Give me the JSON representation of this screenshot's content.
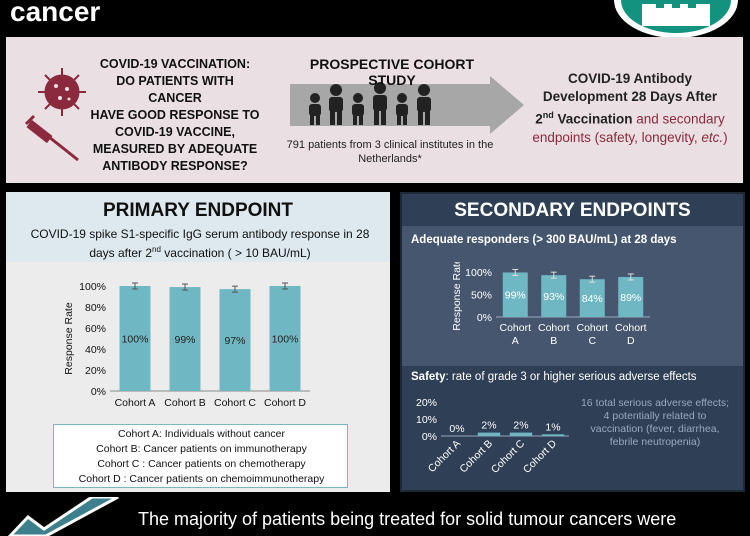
{
  "header": {
    "title": "cancer"
  },
  "intro": {
    "question_lines": [
      "COVID-19 VACCINATION:",
      "DO PATIENTS WITH CANCER",
      "HAVE GOOD RESPONSE TO",
      "COVID-19 VACCINE,",
      "MEASURED BY ADEQUATE",
      "ANTIBODY RESPONSE?"
    ],
    "study_title": "PROSPECTIVE COHORT STUDY",
    "study_sub": "791 patients from 3 clinical institutes in the Netherlands*",
    "outcome_main_1": "COVID-19 Antibody",
    "outcome_main_2": "Development 28 Days After",
    "outcome_ordinal": "2",
    "outcome_sup": "nd",
    "outcome_vacc": " Vaccination",
    "outcome_rest": " and secondary endpoints (safety, longevity, ",
    "outcome_etc": "etc.",
    "outcome_close": ")"
  },
  "primary": {
    "title": "PRIMARY ENDPOINT",
    "desc_1": "COVID-19 spike S1-specific IgG serum antibody response in 28",
    "desc_2a": "days after 2",
    "desc_2sup": "nd",
    "desc_2b": " vaccination ( > 10 BAU/mL)",
    "legend": [
      "Cohort A: Individuals without cancer",
      "Cohort B: Cancer patients on immunotherapy",
      "Cohort C : Cancer patients on chemotherapy",
      "Cohort D : Cancer patients on chemoimmunotherapy"
    ]
  },
  "secondary": {
    "title": "SECONDARY ENDPOINTS",
    "adequate_label": "Adequate responders (> 300 BAU/mL) at 28 days",
    "safety_bold": "Safety",
    "safety_rest": ": rate of grade 3 or higher serious adverse effects",
    "safety_note": "16 total serious adverse effects; 4 potentially related to vaccination (fever, diarrhea, febrile neutropenia)"
  },
  "footer": {
    "text": "The majority of patients being treated for solid tumour cancers were"
  },
  "colors": {
    "bar": "#6fb7c2",
    "accent_red": "#8b2a3e",
    "dark_panel": "#2f3f55"
  },
  "chart_data": [
    {
      "type": "bar",
      "title": "",
      "ylabel": "Response Rate",
      "categories": [
        "Cohort A",
        "Cohort B",
        "Cohort C",
        "Cohort D"
      ],
      "values": [
        100,
        99,
        97,
        100
      ],
      "data_labels": [
        "100%",
        "99%",
        "97%",
        "100%"
      ],
      "yticks": [
        "0%",
        "20%",
        "40%",
        "60%",
        "80%",
        "100%"
      ],
      "ylim": [
        0,
        100
      ],
      "error_bars": true
    },
    {
      "type": "bar",
      "title": "Adequate responders (> 300 BAU/mL) at 28 days",
      "ylabel": "Response Rate",
      "categories": [
        "Cohort A",
        "Cohort B",
        "Cohort C",
        "Cohort D"
      ],
      "values": [
        99,
        93,
        84,
        89
      ],
      "data_labels": [
        "99%",
        "93%",
        "84%",
        "89%"
      ],
      "yticks": [
        "0%",
        "50%",
        "100%"
      ],
      "ylim": [
        0,
        100
      ],
      "error_bars": true
    },
    {
      "type": "bar",
      "title": "Safety: rate of grade 3 or higher serious adverse effects",
      "categories": [
        "Cohort A",
        "Cohort B",
        "Cohort C",
        "Cohort D"
      ],
      "values": [
        0,
        2,
        2,
        1
      ],
      "data_labels": [
        "0%",
        "2%",
        "2%",
        "1%"
      ],
      "yticks": [
        "0%",
        "10%",
        "20%"
      ],
      "ylim": [
        0,
        20
      ]
    }
  ]
}
